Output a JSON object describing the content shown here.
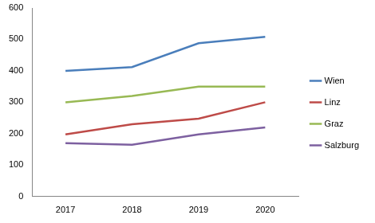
{
  "chart_data": {
    "type": "line",
    "categories": [
      "2017",
      "2018",
      "2019",
      "2020"
    ],
    "series": [
      {
        "name": "Wien",
        "color": "#4a7ebb",
        "values": [
          400,
          412,
          488,
          508
        ]
      },
      {
        "name": "Linz",
        "color": "#be4b48",
        "values": [
          198,
          230,
          248,
          300
        ]
      },
      {
        "name": "Graz",
        "color": "#98b954",
        "values": [
          300,
          320,
          350,
          350
        ]
      },
      {
        "name": "Salzburg",
        "color": "#7d60a0",
        "values": [
          170,
          165,
          198,
          220
        ]
      }
    ],
    "ylim": [
      0,
      600
    ],
    "yticks": [
      0,
      100,
      200,
      300,
      400,
      500,
      600
    ],
    "grid": false,
    "legend": "right",
    "marker": "none"
  }
}
